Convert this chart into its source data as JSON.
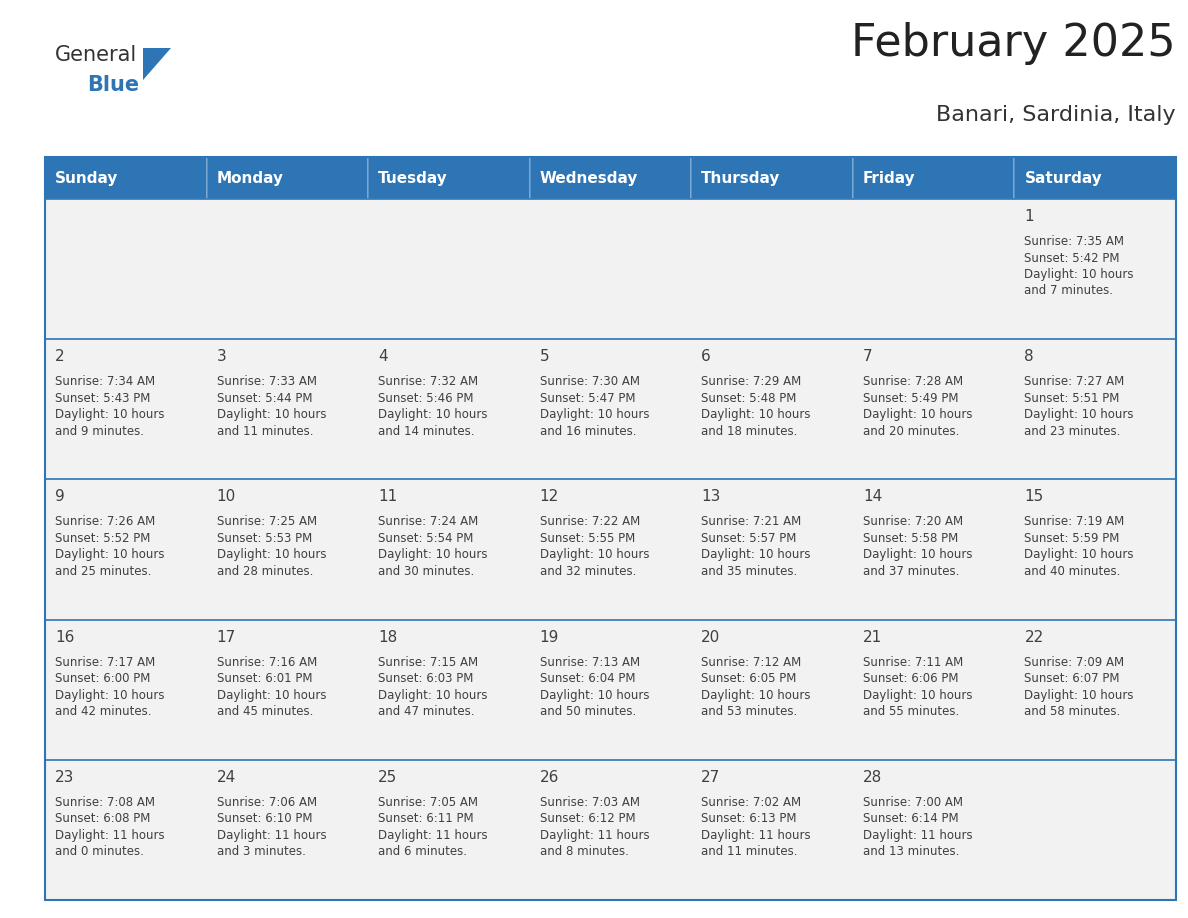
{
  "title": "February 2025",
  "subtitle": "Banari, Sardinia, Italy",
  "header_color": "#2E75B6",
  "header_text_color": "#FFFFFF",
  "cell_bg_color": "#F2F2F2",
  "cell_bg_empty": "#F2F2F2",
  "border_color": "#2E75B6",
  "day_number_color": "#404040",
  "info_text_color": "#404040",
  "days_of_week": [
    "Sunday",
    "Monday",
    "Tuesday",
    "Wednesday",
    "Thursday",
    "Friday",
    "Saturday"
  ],
  "weeks": [
    [
      {
        "day": "",
        "info": ""
      },
      {
        "day": "",
        "info": ""
      },
      {
        "day": "",
        "info": ""
      },
      {
        "day": "",
        "info": ""
      },
      {
        "day": "",
        "info": ""
      },
      {
        "day": "",
        "info": ""
      },
      {
        "day": "1",
        "info": "Sunrise: 7:35 AM\nSunset: 5:42 PM\nDaylight: 10 hours\nand 7 minutes."
      }
    ],
    [
      {
        "day": "2",
        "info": "Sunrise: 7:34 AM\nSunset: 5:43 PM\nDaylight: 10 hours\nand 9 minutes."
      },
      {
        "day": "3",
        "info": "Sunrise: 7:33 AM\nSunset: 5:44 PM\nDaylight: 10 hours\nand 11 minutes."
      },
      {
        "day": "4",
        "info": "Sunrise: 7:32 AM\nSunset: 5:46 PM\nDaylight: 10 hours\nand 14 minutes."
      },
      {
        "day": "5",
        "info": "Sunrise: 7:30 AM\nSunset: 5:47 PM\nDaylight: 10 hours\nand 16 minutes."
      },
      {
        "day": "6",
        "info": "Sunrise: 7:29 AM\nSunset: 5:48 PM\nDaylight: 10 hours\nand 18 minutes."
      },
      {
        "day": "7",
        "info": "Sunrise: 7:28 AM\nSunset: 5:49 PM\nDaylight: 10 hours\nand 20 minutes."
      },
      {
        "day": "8",
        "info": "Sunrise: 7:27 AM\nSunset: 5:51 PM\nDaylight: 10 hours\nand 23 minutes."
      }
    ],
    [
      {
        "day": "9",
        "info": "Sunrise: 7:26 AM\nSunset: 5:52 PM\nDaylight: 10 hours\nand 25 minutes."
      },
      {
        "day": "10",
        "info": "Sunrise: 7:25 AM\nSunset: 5:53 PM\nDaylight: 10 hours\nand 28 minutes."
      },
      {
        "day": "11",
        "info": "Sunrise: 7:24 AM\nSunset: 5:54 PM\nDaylight: 10 hours\nand 30 minutes."
      },
      {
        "day": "12",
        "info": "Sunrise: 7:22 AM\nSunset: 5:55 PM\nDaylight: 10 hours\nand 32 minutes."
      },
      {
        "day": "13",
        "info": "Sunrise: 7:21 AM\nSunset: 5:57 PM\nDaylight: 10 hours\nand 35 minutes."
      },
      {
        "day": "14",
        "info": "Sunrise: 7:20 AM\nSunset: 5:58 PM\nDaylight: 10 hours\nand 37 minutes."
      },
      {
        "day": "15",
        "info": "Sunrise: 7:19 AM\nSunset: 5:59 PM\nDaylight: 10 hours\nand 40 minutes."
      }
    ],
    [
      {
        "day": "16",
        "info": "Sunrise: 7:17 AM\nSunset: 6:00 PM\nDaylight: 10 hours\nand 42 minutes."
      },
      {
        "day": "17",
        "info": "Sunrise: 7:16 AM\nSunset: 6:01 PM\nDaylight: 10 hours\nand 45 minutes."
      },
      {
        "day": "18",
        "info": "Sunrise: 7:15 AM\nSunset: 6:03 PM\nDaylight: 10 hours\nand 47 minutes."
      },
      {
        "day": "19",
        "info": "Sunrise: 7:13 AM\nSunset: 6:04 PM\nDaylight: 10 hours\nand 50 minutes."
      },
      {
        "day": "20",
        "info": "Sunrise: 7:12 AM\nSunset: 6:05 PM\nDaylight: 10 hours\nand 53 minutes."
      },
      {
        "day": "21",
        "info": "Sunrise: 7:11 AM\nSunset: 6:06 PM\nDaylight: 10 hours\nand 55 minutes."
      },
      {
        "day": "22",
        "info": "Sunrise: 7:09 AM\nSunset: 6:07 PM\nDaylight: 10 hours\nand 58 minutes."
      }
    ],
    [
      {
        "day": "23",
        "info": "Sunrise: 7:08 AM\nSunset: 6:08 PM\nDaylight: 11 hours\nand 0 minutes."
      },
      {
        "day": "24",
        "info": "Sunrise: 7:06 AM\nSunset: 6:10 PM\nDaylight: 11 hours\nand 3 minutes."
      },
      {
        "day": "25",
        "info": "Sunrise: 7:05 AM\nSunset: 6:11 PM\nDaylight: 11 hours\nand 6 minutes."
      },
      {
        "day": "26",
        "info": "Sunrise: 7:03 AM\nSunset: 6:12 PM\nDaylight: 11 hours\nand 8 minutes."
      },
      {
        "day": "27",
        "info": "Sunrise: 7:02 AM\nSunset: 6:13 PM\nDaylight: 11 hours\nand 11 minutes."
      },
      {
        "day": "28",
        "info": "Sunrise: 7:00 AM\nSunset: 6:14 PM\nDaylight: 11 hours\nand 13 minutes."
      },
      {
        "day": "",
        "info": ""
      }
    ]
  ],
  "logo_general_color": "#333333",
  "logo_blue_color": "#2E75B6",
  "title_fontsize": 32,
  "subtitle_fontsize": 16,
  "header_fontsize": 11,
  "day_num_fontsize": 11,
  "info_fontsize": 8.5
}
